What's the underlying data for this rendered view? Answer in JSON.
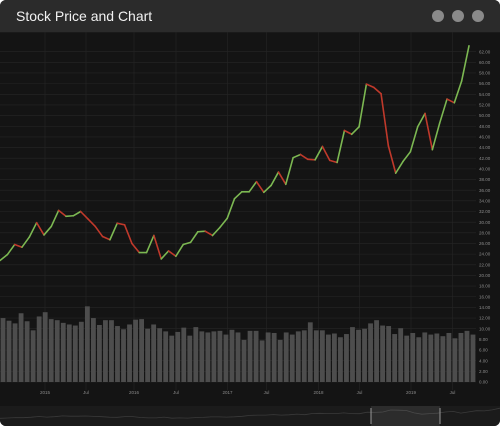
{
  "window": {
    "title": "Stock Price and Chart"
  },
  "colors": {
    "up": "#7cb852",
    "down": "#c0392b",
    "volume": "#4d4d4d",
    "grid": "#262626",
    "background": "#141414"
  },
  "chart_data": {
    "type": "line",
    "grid": true,
    "y_axis_side": "right",
    "ylim": [
      0,
      64
    ],
    "y_ticks": [
      "0.00",
      "2.00",
      "4.00",
      "6.00",
      "8.00",
      "10.00",
      "12.00",
      "14.00",
      "16.00",
      "18.00",
      "20.00",
      "22.00",
      "24.00",
      "26.00",
      "28.00",
      "30.00",
      "32.00",
      "34.00",
      "36.00",
      "38.00",
      "40.00",
      "42.00",
      "44.00",
      "46.00",
      "48.00",
      "50.00",
      "52.00",
      "54.00",
      "56.00",
      "58.00",
      "60.00",
      "62.00"
    ],
    "x_ticks": [
      {
        "label": "2015",
        "x": 0.09
      },
      {
        "label": "Jul",
        "x": 0.172
      },
      {
        "label": "2016",
        "x": 0.268
      },
      {
        "label": "Jul",
        "x": 0.352
      },
      {
        "label": "2017",
        "x": 0.455
      },
      {
        "label": "Jul",
        "x": 0.533
      },
      {
        "label": "2018",
        "x": 0.637
      },
      {
        "label": "Jul",
        "x": 0.719
      },
      {
        "label": "2019",
        "x": 0.822
      },
      {
        "label": "Jul",
        "x": 0.905
      }
    ],
    "series": [
      {
        "kind": "price",
        "values": [
          22.8,
          23.9,
          25.8,
          25.3,
          27.2,
          29.9,
          27.6,
          29.2,
          32.2,
          31.1,
          31.2,
          32.0,
          30.6,
          29.2,
          27.3,
          26.7,
          29.8,
          29.5,
          26.0,
          24.3,
          24.3,
          27.5,
          23.1,
          24.6,
          23.6,
          25.8,
          26.2,
          28.2,
          28.3,
          27.5,
          29.0,
          30.7,
          34.4,
          35.7,
          35.7,
          37.6,
          35.6,
          36.9,
          39.4,
          37.1,
          42.1,
          42.7,
          41.8,
          41.7,
          44.2,
          41.6,
          41.2,
          47.2,
          46.5,
          47.9,
          55.9,
          55.3,
          54.1,
          44.3,
          39.2,
          41.4,
          43.2,
          47.9,
          50.4,
          43.6,
          48.6,
          53.1,
          52.4,
          56.5,
          63.1
        ]
      },
      {
        "kind": "volume",
        "values": [
          12.0,
          11.5,
          11.0,
          12.9,
          11.4,
          9.7,
          12.3,
          13.1,
          11.8,
          11.6,
          11.1,
          10.8,
          10.6,
          11.3,
          14.2,
          12.0,
          10.7,
          11.6,
          11.6,
          10.5,
          9.9,
          10.8,
          11.7,
          11.8,
          10.0,
          10.8,
          10.1,
          9.5,
          8.7,
          9.4,
          10.2,
          8.7,
          10.3,
          9.5,
          9.3,
          9.5,
          9.6,
          8.9,
          9.8,
          9.3,
          7.9,
          9.6,
          9.6,
          7.8,
          9.3,
          9.2,
          7.9,
          9.3,
          8.9,
          9.5,
          9.7,
          11.2,
          9.7,
          9.7,
          8.9,
          9.1,
          8.4,
          9.0,
          10.3,
          9.8,
          10.0,
          11.0,
          11.6,
          10.6,
          10.5,
          9.0,
          10.1,
          8.7,
          9.2,
          8.4,
          9.3,
          8.9,
          9.1,
          8.6,
          9.2,
          8.2,
          9.2,
          9.6,
          8.9
        ]
      }
    ]
  }
}
